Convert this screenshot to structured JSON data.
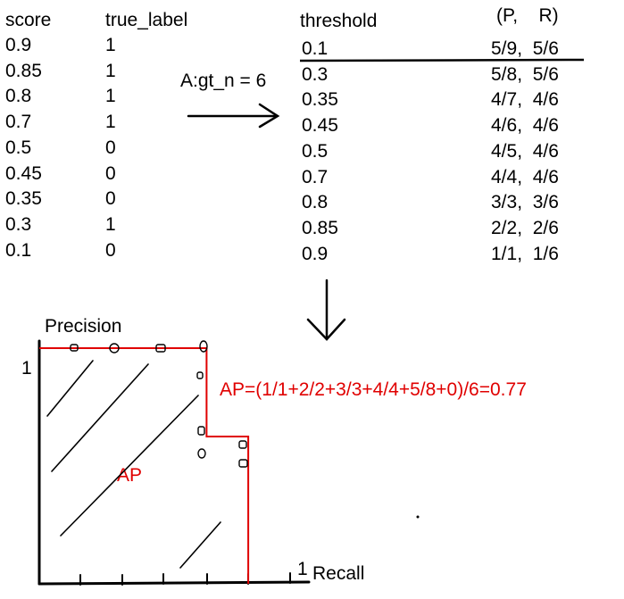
{
  "left_table": {
    "header_score": "score",
    "header_label": "true_label",
    "rows": [
      {
        "score": "0.9",
        "label": "1"
      },
      {
        "score": "0.85",
        "label": "1"
      },
      {
        "score": "0.8",
        "label": "1"
      },
      {
        "score": "0.7",
        "label": "1"
      },
      {
        "score": "0.5",
        "label": "0"
      },
      {
        "score": "0.45",
        "label": "0"
      },
      {
        "score": "0.35",
        "label": "0"
      },
      {
        "score": "0.3",
        "label": "1"
      },
      {
        "score": "0.1",
        "label": "0"
      }
    ]
  },
  "arrow_label": "A:gt_n = 6",
  "right_table": {
    "header_threshold": "threshold",
    "header_pr": "(P,    R)",
    "rows": [
      {
        "threshold": "0.1",
        "pr": "5/9,  5/6"
      },
      {
        "threshold": "0.3",
        "pr": "5/8,  5/6"
      },
      {
        "threshold": "0.35",
        "pr": "4/7,  4/6"
      },
      {
        "threshold": "0.45",
        "pr": "4/6,  4/6"
      },
      {
        "threshold": "0.5",
        "pr": "4/5,  4/6"
      },
      {
        "threshold": "0.7",
        "pr": "4/4,  4/6"
      },
      {
        "threshold": "0.8",
        "pr": "3/3,  3/6"
      },
      {
        "threshold": "0.85",
        "pr": "2/2,  2/6"
      },
      {
        "threshold": "0.9",
        "pr": "1/1,  1/6"
      }
    ]
  },
  "plot": {
    "ylabel": "Precision",
    "xlabel": "Recall",
    "y_tick": "1",
    "x_tick": "1",
    "area_label": "AP",
    "formula": "AP=(1/1+2/2+3/3+4/4+5/8+0)/6=0.77",
    "curve_color": "#e00000",
    "pr_steps": [
      {
        "recall": 0.0,
        "precision": 1.0
      },
      {
        "recall": 0.667,
        "precision": 1.0
      },
      {
        "recall": 0.667,
        "precision": 0.625
      },
      {
        "recall": 0.833,
        "precision": 0.625
      },
      {
        "recall": 0.833,
        "precision": 0.0
      }
    ]
  }
}
